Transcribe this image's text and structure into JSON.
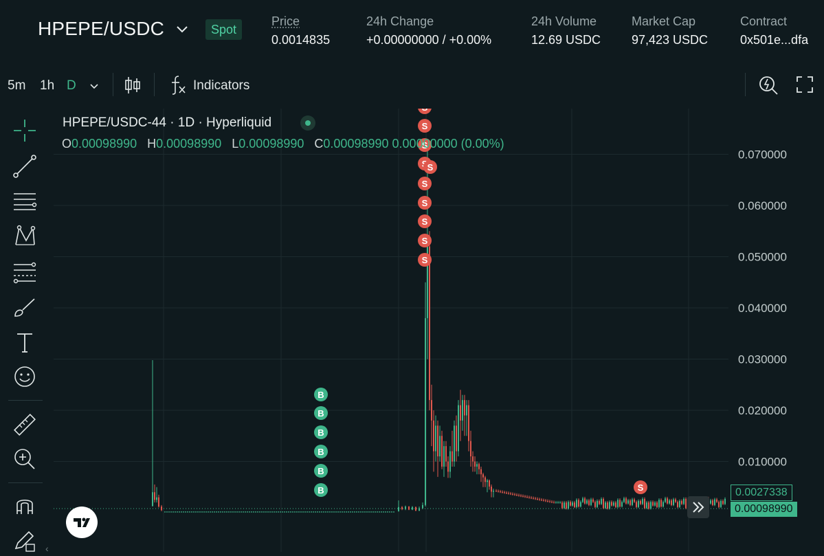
{
  "header": {
    "pair": "HPEPE/USDC",
    "market_type": "Spot",
    "stats": [
      {
        "label": "Price",
        "value": "0.0014835"
      },
      {
        "label": "24h Change",
        "value": "+0.00000000 / +0.00%"
      },
      {
        "label": "24h Volume",
        "value": "12.69 USDC"
      },
      {
        "label": "Market Cap",
        "value": "97,423 USDC"
      },
      {
        "label": "Contract",
        "value": "0x501e...dfa"
      }
    ]
  },
  "toolbar": {
    "intervals": [
      "5m",
      "1h",
      "D"
    ],
    "active_interval": "D",
    "indicators_label": "Indicators"
  },
  "chart": {
    "symbol_line": "HPEPE/USDC-44 · 1D · Hyperliquid",
    "ohlc": {
      "o_label": "O",
      "o": "0.00098990",
      "h_label": "H",
      "h": "0.00098990",
      "l_label": "L",
      "l": "0.00098990",
      "c_label": "C",
      "c": "0.00098990",
      "change": "0.00000000 (0.00%)"
    },
    "price_axis": [
      "0.070000",
      "0.060000",
      "0.050000",
      "0.040000",
      "0.030000",
      "0.020000",
      "0.010000"
    ],
    "last_price_tag": "0.0027338",
    "current_price_tag": "0.00098990",
    "buy_marker": "B",
    "sell_marker": "S"
  },
  "colors": {
    "up": "#3fb68b",
    "down": "#e0584d",
    "background": "#0f1a1e",
    "grid": "#1c2a2e"
  }
}
